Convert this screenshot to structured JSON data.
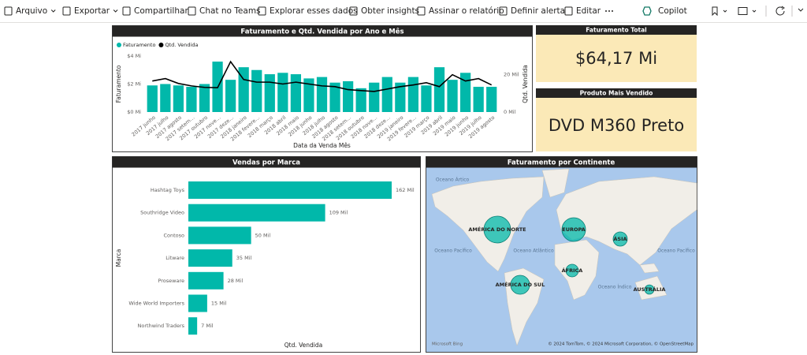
{
  "toolbar": {
    "items": [
      "Arquivo",
      "Exportar",
      "Compartilhar",
      "Chat no Teams",
      "Explorar esses dados",
      "Obter insights",
      "Assinar o relatório",
      "Definir alerta",
      "Editar"
    ],
    "copilot": "Copilot"
  },
  "chart_data": [
    {
      "type": "combo",
      "title": "Faturamento e Qtd. Vendida por Ano e Mês",
      "xlabel": "Data da Venda Mês",
      "ylabel": "Faturamento",
      "y2label": "Qtd. Vendida",
      "categories": [
        "2017 junho",
        "2017 julho",
        "2017 agosto",
        "2017 setem…",
        "2017 outubro",
        "2017 nove…",
        "2017 deze…",
        "2018 janeiro",
        "2018 fevere…",
        "2018 março",
        "2018 abril",
        "2018 maio",
        "2018 junho",
        "2018 julho",
        "2018 agosto",
        "2018 setem…",
        "2018 outubro",
        "2018 nove…",
        "2018 deze…",
        "2019 janeiro",
        "2019 fevere…",
        "2019 março",
        "2019 abril",
        "2019 maio",
        "2019 junho",
        "2019 julho",
        "2019 agosto"
      ],
      "series": [
        {
          "name": "Faturamento",
          "type": "bar",
          "color": "#01b8aa",
          "values": [
            1.9,
            2.0,
            1.9,
            1.8,
            2.0,
            3.6,
            2.3,
            3.2,
            3.0,
            2.7,
            2.8,
            2.7,
            2.4,
            2.5,
            2.1,
            2.2,
            1.7,
            2.1,
            2.5,
            2.1,
            2.5,
            1.9,
            3.2,
            2.3,
            2.8,
            1.8,
            1.8
          ]
        },
        {
          "name": "Qtd. Vendida",
          "type": "line",
          "color": "#000000",
          "axis": "y2",
          "values": [
            16.6,
            17.9,
            15.3,
            14,
            13.2,
            13,
            27,
            17.4,
            16,
            16,
            15,
            16,
            15,
            14,
            13.6,
            12,
            11.5,
            11,
            12.3,
            13.6,
            14.5,
            15.7,
            13.6,
            20,
            16.6,
            17.9,
            14.5
          ]
        }
      ],
      "ylim": [
        0,
        4
      ],
      "yticks": [
        {
          "value": 0,
          "label": "$0 Mi"
        },
        {
          "value": 2,
          "label": "$2 Mi"
        },
        {
          "value": 4,
          "label": "$4 Mi"
        }
      ],
      "y2lim": [
        0,
        30
      ],
      "y2ticks": [
        {
          "value": 0,
          "label": "0 Mil"
        },
        {
          "value": 20,
          "label": "20 Mil"
        }
      ],
      "grid": false,
      "legend": "top-left"
    },
    {
      "type": "hbar",
      "title": "Vendas por Marca",
      "xlabel": "Qtd. Vendida",
      "ylabel": "Marca",
      "categories": [
        "Hashtag Toys",
        "Southridge Video",
        "Contoso",
        "Litware",
        "Proseware",
        "Wide World Importers",
        "Northwind Traders"
      ],
      "values": [
        162,
        109,
        50,
        35,
        28,
        15,
        7
      ],
      "value_labels": [
        "162 Mil",
        "109 Mil",
        "50 Mil",
        "35 Mil",
        "28 Mil",
        "15 Mil",
        "7 Mil"
      ],
      "color": "#01b8aa"
    }
  ],
  "cards": [
    {
      "title": "Faturamento Total",
      "value": "$64,17 Mi"
    },
    {
      "title": "Produto Mais Vendido",
      "value": "DVD M360 Preto"
    }
  ],
  "map": {
    "title": "Faturamento por Continente",
    "oceans": [
      "Oceano Ártico",
      "Oceano Pacífico",
      "Oceano Atlântico",
      "Oceano Pacífico",
      "Oceano Índico"
    ],
    "bubbles": [
      {
        "label": "AMÉRICA DO NORTE",
        "size": 25
      },
      {
        "label": "EUROPA",
        "size": 19.5
      },
      {
        "label": "ÁSIA",
        "size": 7
      },
      {
        "label": "AMÉRICA DO SUL",
        "size": 12.5
      },
      {
        "label": "ÁFRICA",
        "size": 5.5
      },
      {
        "label": "AUSTRÁLIA",
        "size": 3
      }
    ],
    "color": "#01b8aa",
    "logo": "Microsoft Bing",
    "attribution": "© 2024 TomTom, © 2024 Microsoft Corporation, © OpenStreetMap"
  }
}
